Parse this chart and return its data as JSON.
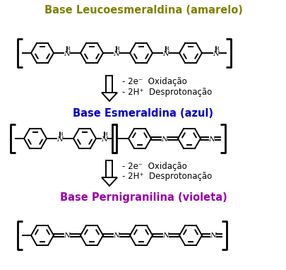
{
  "title1": "Base Leucoesmeraldina (amarelo)",
  "title2": "Base Esmeraldina (azul)",
  "title3": "Base Pernigranilina (violeta)",
  "color1": "#808000",
  "color2": "#0000CC",
  "color3": "#9900AA",
  "arrow_text1_line1": "- 2e⁻  Oxidação",
  "arrow_text1_line2": "- 2H⁺  Desprotonação",
  "arrow_text2_line1": "- 2e⁻  Oxidação",
  "arrow_text2_line2": "- 2H⁺  Desprotonação",
  "bg_color": "#ffffff",
  "sc": "#000000",
  "fig_width": 4.06,
  "fig_height": 3.82,
  "dpi": 100
}
